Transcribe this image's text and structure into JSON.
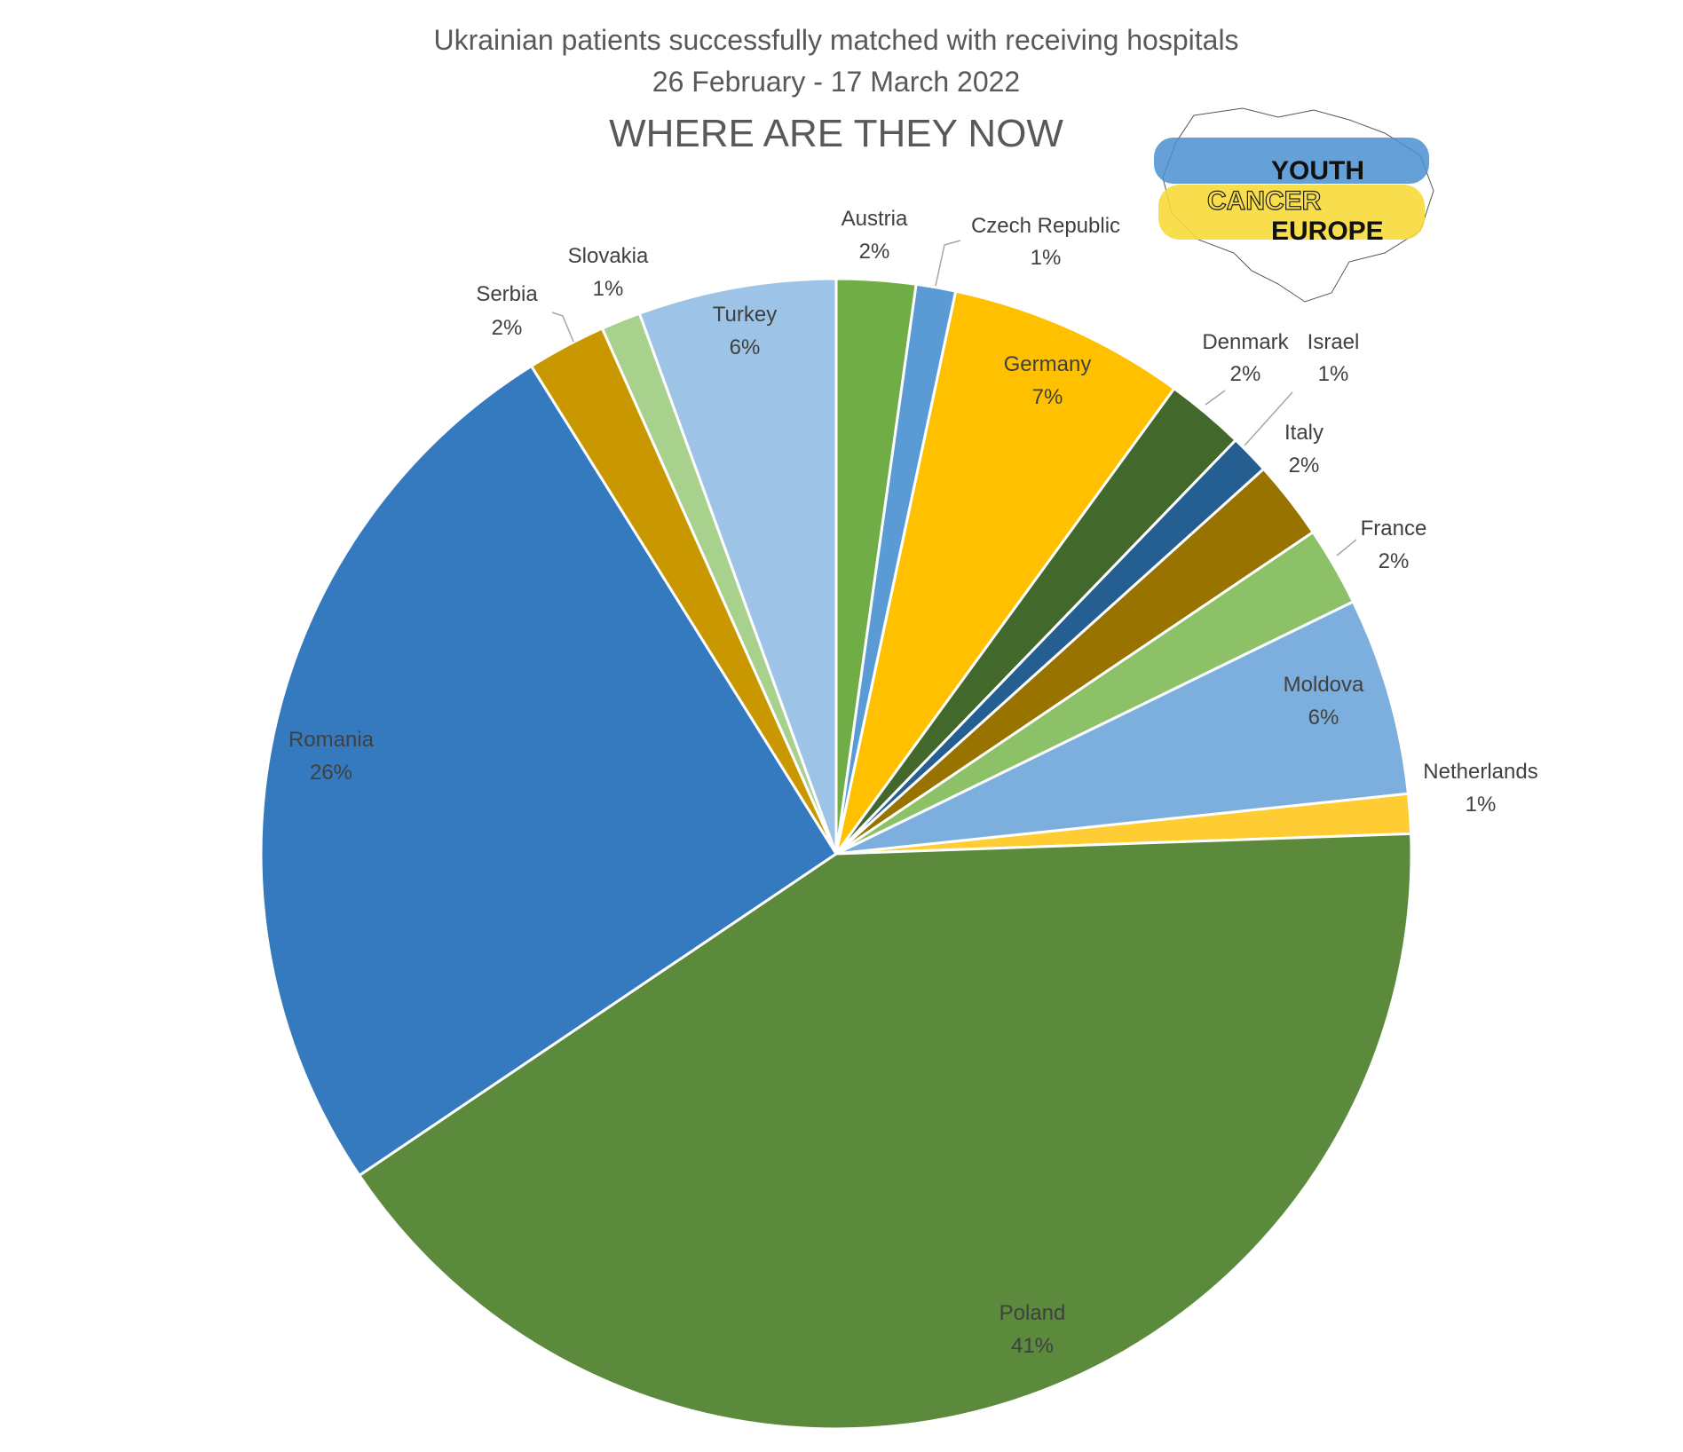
{
  "chart_data": {
    "type": "pie",
    "title": "Ukrainian patients successfully matched with receiving hospitals",
    "subtitle": "26 February - 17 March 2022",
    "heading": "WHERE ARE THEY NOW",
    "start_direction": "top-clockwise",
    "slices": [
      {
        "label": "Austria",
        "value": 2,
        "percent_label": "2%",
        "color": "#70AD47"
      },
      {
        "label": "Czech Republic",
        "value": 1,
        "percent_label": "1%",
        "color": "#5B9BD5"
      },
      {
        "label": "Germany",
        "value": 6,
        "percent_label": "7%",
        "color": "#FFC000"
      },
      {
        "label": "Denmark",
        "value": 2,
        "percent_label": "2%",
        "color": "#43682B"
      },
      {
        "label": "Israel",
        "value": 1,
        "percent_label": "1%",
        "color": "#255E91"
      },
      {
        "label": "Italy",
        "value": 2,
        "percent_label": "2%",
        "color": "#997300"
      },
      {
        "label": "France",
        "value": 2,
        "percent_label": "2%",
        "color": "#8CC168"
      },
      {
        "label": "Moldova",
        "value": 5,
        "percent_label": "6%",
        "color": "#7CAFDD"
      },
      {
        "label": "Netherlands",
        "value": 1,
        "percent_label": "1%",
        "color": "#FFCD33"
      },
      {
        "label": "Poland",
        "value": 37,
        "percent_label": "41%",
        "color": "#5B8A3C"
      },
      {
        "label": "Romania",
        "value": 23,
        "percent_label": "26%",
        "color": "#357ABF"
      },
      {
        "label": "Serbia",
        "value": 2,
        "percent_label": "2%",
        "color": "#C99700"
      },
      {
        "label": "Slovakia",
        "value": 1,
        "percent_label": "1%",
        "color": "#A9D18E"
      },
      {
        "label": "Turkey",
        "value": 5,
        "percent_label": "6%",
        "color": "#9DC3E6"
      }
    ]
  },
  "logo": {
    "line1": "YOUTH",
    "line2": "CANCER",
    "line3": "EUROPE"
  }
}
